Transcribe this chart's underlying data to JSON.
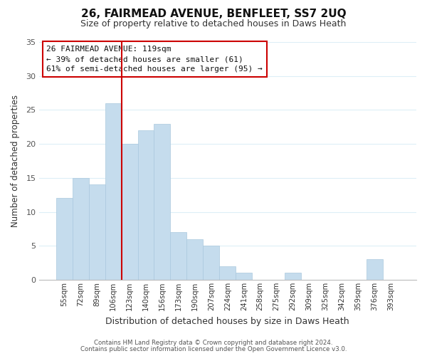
{
  "title": "26, FAIRMEAD AVENUE, BENFLEET, SS7 2UQ",
  "subtitle": "Size of property relative to detached houses in Daws Heath",
  "xlabel": "Distribution of detached houses by size in Daws Heath",
  "ylabel": "Number of detached properties",
  "bar_labels": [
    "55sqm",
    "72sqm",
    "89sqm",
    "106sqm",
    "123sqm",
    "140sqm",
    "156sqm",
    "173sqm",
    "190sqm",
    "207sqm",
    "224sqm",
    "241sqm",
    "258sqm",
    "275sqm",
    "292sqm",
    "309sqm",
    "325sqm",
    "342sqm",
    "359sqm",
    "376sqm",
    "393sqm"
  ],
  "bar_heights": [
    12,
    15,
    14,
    26,
    20,
    22,
    23,
    7,
    6,
    5,
    2,
    1,
    0,
    0,
    1,
    0,
    0,
    0,
    0,
    3,
    0
  ],
  "bar_color": "#c5dced",
  "bar_edge_color": "#c5dced",
  "vline_index": 4,
  "vline_color": "#cc0000",
  "ylim": [
    0,
    35
  ],
  "yticks": [
    0,
    5,
    10,
    15,
    20,
    25,
    30,
    35
  ],
  "annotation_title": "26 FAIRMEAD AVENUE: 119sqm",
  "annotation_line1": "← 39% of detached houses are smaller (61)",
  "annotation_line2": "61% of semi-detached houses are larger (95) →",
  "annotation_box_color": "#ffffff",
  "annotation_box_edgecolor": "#cc0000",
  "footer_line1": "Contains HM Land Registry data © Crown copyright and database right 2024.",
  "footer_line2": "Contains public sector information licensed under the Open Government Licence v3.0.",
  "background_color": "#ffffff",
  "grid_color": "#ddeef7"
}
